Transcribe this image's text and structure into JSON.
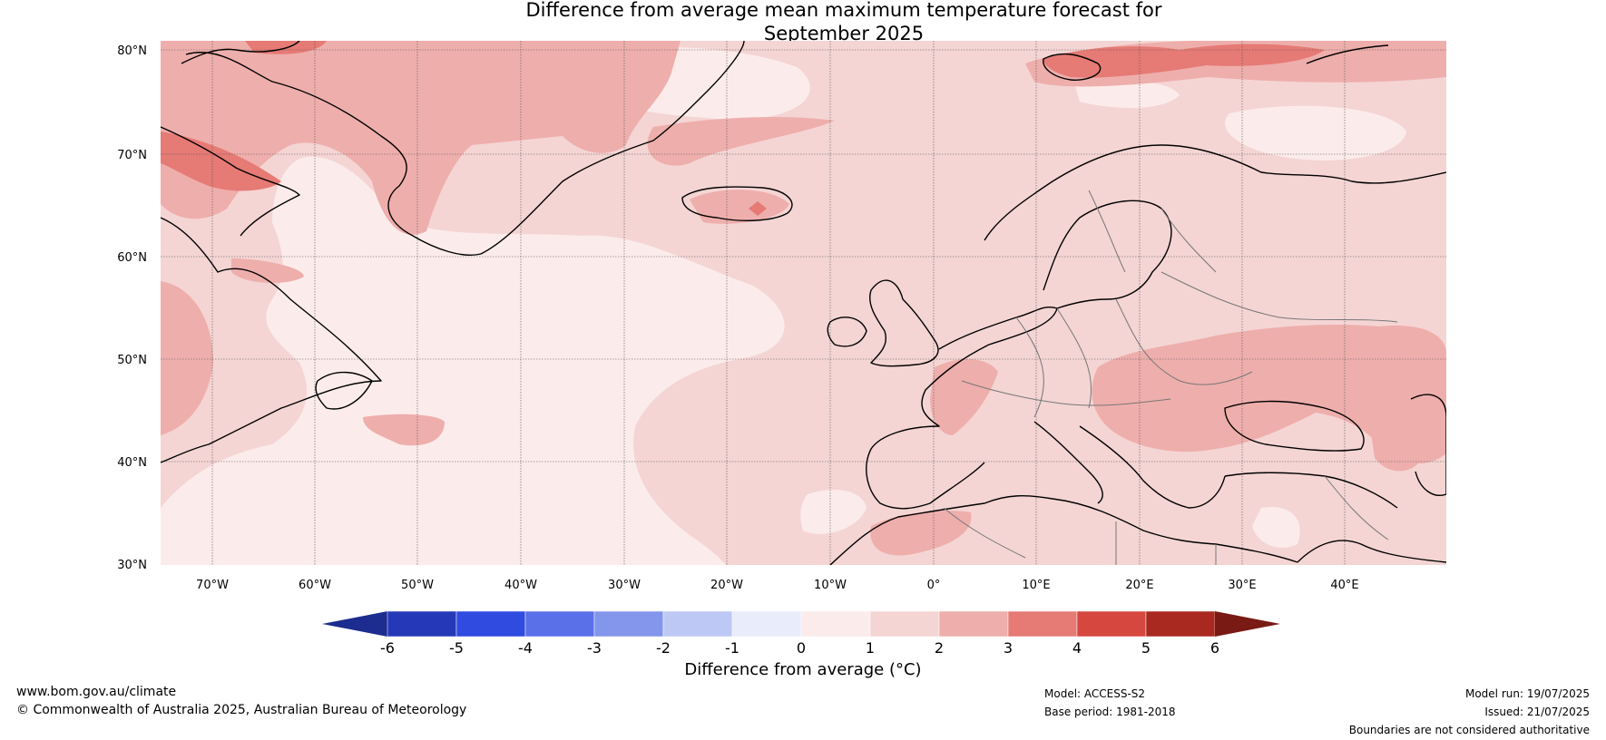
{
  "title": {
    "line1": "Difference from average mean maximum temperature forecast for",
    "line2": "September 2025"
  },
  "map": {
    "lat_labels": [
      "80°N",
      "70°N",
      "60°N",
      "50°N",
      "40°N",
      "30°N"
    ],
    "lon_labels": [
      "70°W",
      "60°W",
      "50°W",
      "40°W",
      "30°W",
      "20°W",
      "10°W",
      "0°",
      "10°E",
      "20°E",
      "30°E",
      "40°E"
    ],
    "ocean_color": "#fbeceb",
    "base_color": "#f4d5d4"
  },
  "colorbar": {
    "ticks": [
      "-6",
      "-5",
      "-4",
      "-3",
      "-2",
      "-1",
      "0",
      "1",
      "2",
      "3",
      "4",
      "5",
      "6"
    ],
    "colors": [
      "#1c2c8f",
      "#2539b8",
      "#2f4be0",
      "#5a70e8",
      "#8396ec",
      "#bec8f4",
      "#e8ecfb",
      "#fbeceb",
      "#f4d5d4",
      "#eeaeac",
      "#e67a75",
      "#d6473f",
      "#a9281f",
      "#7a1a14"
    ],
    "label": "Difference from average (°C)"
  },
  "footer": {
    "website": "www.bom.gov.au/climate",
    "copyright": "© Commonwealth of Australia 2025, Australian Bureau of Meteorology",
    "model": "Model: ACCESS-S2",
    "base_period": "Base period: 1981-2018",
    "model_run": "Model run: 19/07/2025",
    "issued": "Issued: 21/07/2025",
    "disclaimer": "Boundaries are not considered authoritative"
  }
}
